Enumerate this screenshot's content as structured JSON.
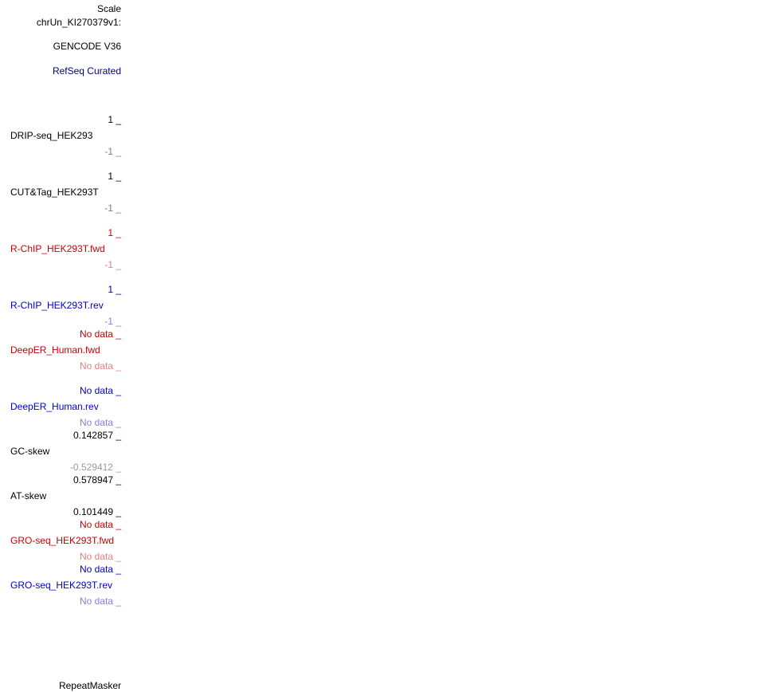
{
  "header": {
    "scale": "Scale",
    "chrom": "chrUn_KI270379v1:"
  },
  "tracks": {
    "gencode": "GENCODE V36",
    "refseq": "RefSeq Curated",
    "drip": {
      "max": "1 _",
      "name": "DRIP-seq_HEK293",
      "min": "-1 _"
    },
    "cuttag": {
      "max": "1 _",
      "name": "CUT&Tag_HEK293T",
      "min": "-1 _"
    },
    "rchip_fwd": {
      "max": "1 _",
      "name": "R-ChIP_HEK293T.fwd",
      "min": "-1 _"
    },
    "rchip_rev": {
      "max": "1 _",
      "name": "R-ChIP_HEK293T.rev",
      "min": "-1 _"
    },
    "deeper_fwd": {
      "max": "No data _",
      "name": "DeepER_Human.fwd",
      "min": "No data _"
    },
    "deeper_rev": {
      "max": "No data _",
      "name": "DeepER_Human.rev",
      "min": "No data _"
    },
    "gcskew": {
      "max": "0.142857 _",
      "name": "GC-skew",
      "min": "-0.529412 _"
    },
    "atskew": {
      "max": "0.578947 _",
      "name": "AT-skew",
      "min": "0.101449 _"
    },
    "gro_fwd": {
      "max": "No data _",
      "name": "GRO-seq_HEK293T.fwd",
      "min": "No data _"
    },
    "gro_rev": {
      "max": "No data _",
      "name": "GRO-seq_HEK293T.rev",
      "min": "No data _"
    },
    "repeatmasker": "RepeatMasker"
  },
  "colors": {
    "black": "#000000",
    "navy": "#000080",
    "red": "#cc0000",
    "pink": "#e67f7f",
    "blue": "#0000cc",
    "light_blue": "#7f7fe6",
    "gray": "#808080"
  }
}
